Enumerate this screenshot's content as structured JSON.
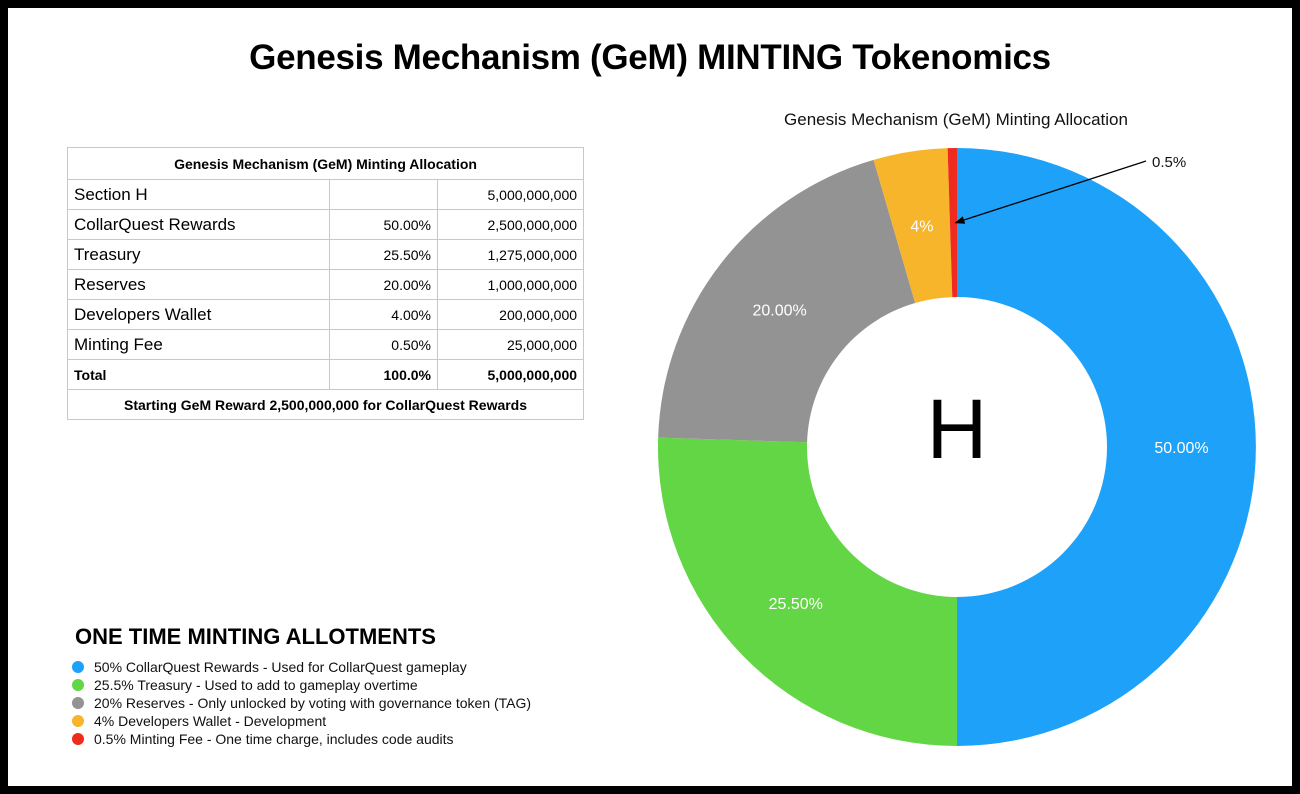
{
  "title": "Genesis Mechanism (GeM) MINTING Tokenomics",
  "table": {
    "caption": "Genesis Mechanism (GeM) Minting Allocation",
    "header_row": {
      "name": "Section H",
      "pct": "",
      "amount": "5,000,000,000"
    },
    "rows": [
      {
        "name": "CollarQuest Rewards",
        "pct": "50.00%",
        "amount": "2,500,000,000"
      },
      {
        "name": "Treasury",
        "pct": "25.50%",
        "amount": "1,275,000,000"
      },
      {
        "name": "Reserves",
        "pct": "20.00%",
        "amount": "1,000,000,000"
      },
      {
        "name": "Developers Wallet",
        "pct": "4.00%",
        "amount": "200,000,000"
      },
      {
        "name": "Minting Fee",
        "pct": "0.50%",
        "amount": "25,000,000"
      }
    ],
    "total": {
      "name": "Total",
      "pct": "100.0%",
      "amount": "5,000,000,000"
    },
    "footer": "Starting GeM Reward 2,500,000,000 for CollarQuest Rewards"
  },
  "allotments": {
    "title": "ONE TIME MINTING ALLOTMENTS",
    "items": [
      {
        "text": "50% CollarQuest Rewards - Used for CollarQuest gameplay",
        "color": "#1da1f9"
      },
      {
        "text": "25.5% Treasury - Used to add to gameplay overtime",
        "color": "#62d644"
      },
      {
        "text": "20% Reserves - Only unlocked by voting with governance token (TAG)",
        "color": "#939393"
      },
      {
        "text": "4% Developers Wallet - Development",
        "color": "#f7b52c"
      },
      {
        "text": "0.5% Minting Fee - One time charge, includes code audits",
        "color": "#ef2a1f"
      }
    ]
  },
  "chart_data": {
    "type": "pie",
    "title": "Genesis Mechanism (GeM) Minting Allocation",
    "center_label": "H",
    "slices": [
      {
        "value": 50.0,
        "label": "50.00%",
        "color": "#1da1f9"
      },
      {
        "value": 25.5,
        "label": "25.50%",
        "color": "#62d644"
      },
      {
        "value": 20.0,
        "label": "20.00%",
        "color": "#939393"
      },
      {
        "value": 4.0,
        "label": "4%",
        "color": "#f7b52c"
      },
      {
        "value": 0.5,
        "label": "0.5%",
        "color": "#ef2a1f"
      }
    ]
  }
}
